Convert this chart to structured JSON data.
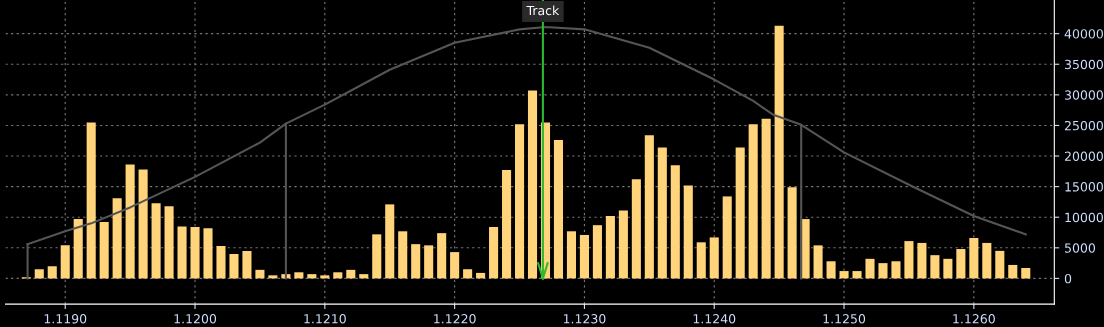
{
  "chart_data": {
    "type": "bar",
    "series": [
      {
        "color": "#ffd47a",
        "x": [
          1.1187,
          1.1188,
          1.1189,
          1.119,
          1.1191,
          1.1192,
          1.1193,
          1.1194,
          1.1195,
          1.1196,
          1.1197,
          1.1198,
          1.1199,
          1.12,
          1.1201,
          1.1202,
          1.1203,
          1.1204,
          1.1205,
          1.1206,
          1.1207,
          1.1208,
          1.1209,
          1.121,
          1.1211,
          1.1212,
          1.1213,
          1.1214,
          1.1215,
          1.1216,
          1.1217,
          1.1218,
          1.1219,
          1.122,
          1.1221,
          1.1222,
          1.1223,
          1.1224,
          1.1225,
          1.1226,
          1.1227,
          1.1228,
          1.1229,
          1.123,
          1.1231,
          1.1232,
          1.1233,
          1.1234,
          1.1235,
          1.1236,
          1.1237,
          1.1238,
          1.1239,
          1.124,
          1.1241,
          1.1242,
          1.1243,
          1.1244,
          1.1245,
          1.1246,
          1.1247,
          1.1248,
          1.1249,
          1.125,
          1.1251,
          1.1252,
          1.1253,
          1.1254,
          1.1255,
          1.1256,
          1.1257,
          1.1258,
          1.1259,
          1.126,
          1.1261,
          1.1262,
          1.1263,
          1.1264
        ],
        "values": [
          200,
          1500,
          2000,
          5400,
          9700,
          25500,
          9200,
          13100,
          18600,
          17800,
          12300,
          11800,
          8500,
          8400,
          8200,
          5300,
          4000,
          4500,
          1400,
          500,
          700,
          1000,
          700,
          500,
          1000,
          1400,
          700,
          7200,
          12100,
          7700,
          5600,
          5400,
          7400,
          4300,
          1500,
          900,
          8400,
          17700,
          25200,
          30700,
          25500,
          22600,
          7700,
          7100,
          8700,
          10200,
          11100,
          16200,
          23400,
          21400,
          18500,
          15200,
          5900,
          6700,
          13400,
          21400,
          25200,
          26100,
          41300,
          14900,
          9700,
          5400,
          2800,
          1200,
          1200,
          3200,
          2500,
          2800,
          6100,
          5800,
          3800,
          3200,
          4800,
          6600,
          5800,
          4500,
          2200,
          1700
        ]
      },
      {
        "type": "line",
        "color": "#555555",
        "x": [
          1.11871,
          1.119,
          1.1192,
          1.1195,
          1.12,
          1.1205,
          1.1207,
          1.121,
          1.1215,
          1.122,
          1.1225,
          1.1227,
          1.123,
          1.1235,
          1.124,
          1.1243,
          1.12445,
          1.12467,
          1.125,
          1.12552,
          1.126,
          1.1264
        ],
        "values": [
          5600,
          7700,
          9000,
          11600,
          16600,
          22200,
          25300,
          28400,
          34100,
          38500,
          40700,
          41100,
          40700,
          37700,
          32500,
          29000,
          26800,
          25100,
          20600,
          15100,
          10200,
          7200
        ]
      },
      {
        "type": "line",
        "color": "#555555",
        "x": [
          1.11871,
          1.11871
        ],
        "values": [
          0,
          5600
        ]
      },
      {
        "type": "line",
        "color": "#555555",
        "x": [
          1.1207,
          1.1207
        ],
        "values": [
          0,
          25300
        ]
      },
      {
        "type": "line",
        "color": "#555555",
        "x": [
          1.12467,
          1.12467
        ],
        "values": [
          0,
          25100
        ]
      }
    ],
    "ref_lines": [
      {
        "axis": "x",
        "value": 1.12268,
        "label": "Track",
        "color": "#2db82d"
      }
    ],
    "xlim": [
      1.11854,
      1.12662
    ],
    "xticks": [
      {
        "value": 1.119,
        "label": "1.1190"
      },
      {
        "value": 1.12,
        "label": "1.1200"
      },
      {
        "value": 1.121,
        "label": "1.1210"
      },
      {
        "value": 1.122,
        "label": "1.1220"
      },
      {
        "value": 1.123,
        "label": "1.1230"
      },
      {
        "value": 1.124,
        "label": "1.1240"
      },
      {
        "value": 1.125,
        "label": "1.1250"
      },
      {
        "value": 1.126,
        "label": "1.1260"
      }
    ],
    "ylim": [
      -4200,
      45500
    ],
    "yticks": [
      0,
      5000,
      10000,
      15000,
      20000,
      25000,
      30000,
      35000,
      40000
    ],
    "grid": true,
    "line_style": "solid",
    "marker": "none"
  }
}
